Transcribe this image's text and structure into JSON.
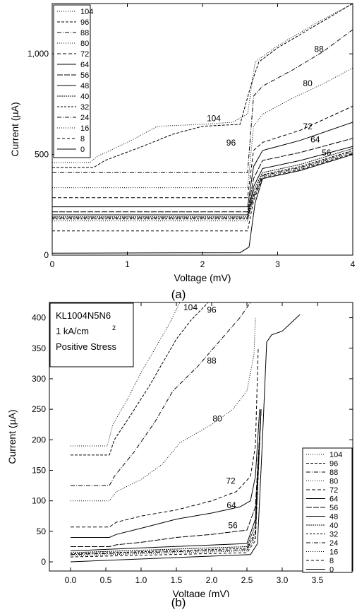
{
  "chart_data": [
    {
      "type": "line",
      "caption": "(a)",
      "xlabel": "Voltage (mV)",
      "ylabel": "Current (µA)",
      "xlim": [
        0,
        4
      ],
      "ylim": [
        0,
        1250
      ],
      "xticks": [
        0,
        1,
        2,
        3,
        4
      ],
      "yticks": [
        0,
        500,
        1000
      ],
      "ytick_labels": [
        "0",
        "500",
        "1,000"
      ],
      "legend_position": "top-left",
      "series": [
        {
          "name": "104",
          "dash": "1,2",
          "points": [
            [
              0,
              460
            ],
            [
              0.5,
              460
            ],
            [
              0.6,
              490
            ],
            [
              1.0,
              560
            ],
            [
              1.4,
              640
            ],
            [
              2.0,
              650
            ],
            [
              2.4,
              660
            ],
            [
              2.6,
              700
            ],
            [
              2.7,
              960
            ],
            [
              3.0,
              1040
            ],
            [
              3.5,
              1150
            ],
            [
              4.0,
              1250
            ]
          ]
        },
        {
          "name": "96",
          "dash": "4,2",
          "points": [
            [
              0,
              435
            ],
            [
              0.55,
              435
            ],
            [
              0.7,
              470
            ],
            [
              1.2,
              540
            ],
            [
              1.6,
              600
            ],
            [
              2.0,
              640
            ],
            [
              2.5,
              650
            ],
            [
              2.65,
              850
            ],
            [
              2.75,
              960
            ],
            [
              3.0,
              1030
            ],
            [
              3.5,
              1140
            ],
            [
              4.0,
              1250
            ]
          ]
        },
        {
          "name": "88",
          "dash": "6,2,1,2",
          "points": [
            [
              0,
              410
            ],
            [
              2.6,
              410
            ],
            [
              2.68,
              790
            ],
            [
              2.8,
              840
            ],
            [
              3.2,
              920
            ],
            [
              3.6,
              1010
            ],
            [
              4.0,
              1120
            ]
          ]
        },
        {
          "name": "80",
          "dash": "1,2",
          "points": [
            [
              0,
              335
            ],
            [
              2.6,
              335
            ],
            [
              2.68,
              640
            ],
            [
              2.8,
              700
            ],
            [
              3.2,
              780
            ],
            [
              3.6,
              850
            ],
            [
              4.0,
              930
            ]
          ]
        },
        {
          "name": "72",
          "dash": "5,3",
          "points": [
            [
              0,
              285
            ],
            [
              2.6,
              285
            ],
            [
              2.68,
              520
            ],
            [
              2.8,
              560
            ],
            [
              3.3,
              620
            ],
            [
              4.0,
              740
            ]
          ]
        },
        {
          "name": "64",
          "dash": "",
          "points": [
            [
              0,
              240
            ],
            [
              2.6,
              240
            ],
            [
              2.68,
              440
            ],
            [
              2.8,
              520
            ],
            [
              3.3,
              570
            ],
            [
              4.0,
              660
            ]
          ]
        },
        {
          "name": "56",
          "dash": "8,2",
          "points": [
            [
              0,
              215
            ],
            [
              2.6,
              215
            ],
            [
              2.68,
              380
            ],
            [
              2.8,
              470
            ],
            [
              3.3,
              510
            ],
            [
              4.0,
              580
            ]
          ]
        },
        {
          "name": "48",
          "dash": "",
          "points": [
            [
              0,
              200
            ],
            [
              2.6,
              200
            ],
            [
              2.68,
              340
            ],
            [
              2.8,
              430
            ],
            [
              3.3,
              470
            ],
            [
              4.0,
              540
            ]
          ]
        },
        {
          "name": "40",
          "dash": "2,1",
          "points": [
            [
              0,
              190
            ],
            [
              2.6,
              190
            ],
            [
              2.68,
              320
            ],
            [
              2.8,
              410
            ],
            [
              3.3,
              450
            ],
            [
              4.0,
              530
            ]
          ]
        },
        {
          "name": "32",
          "dash": "3,2",
          "points": [
            [
              0,
              180
            ],
            [
              2.6,
              180
            ],
            [
              2.68,
              300
            ],
            [
              2.8,
              400
            ],
            [
              3.3,
              440
            ],
            [
              4.0,
              520
            ]
          ]
        },
        {
          "name": "24",
          "dash": "6,2,1,2",
          "points": [
            [
              0,
              185
            ],
            [
              2.6,
              185
            ],
            [
              2.68,
              290
            ],
            [
              2.8,
              395
            ],
            [
              3.3,
              435
            ],
            [
              4.0,
              515
            ]
          ]
        },
        {
          "name": "16",
          "dash": "1,2",
          "points": [
            [
              0,
              170
            ],
            [
              2.6,
              170
            ],
            [
              2.68,
              280
            ],
            [
              2.8,
              390
            ],
            [
              3.3,
              430
            ],
            [
              4.0,
              510
            ]
          ]
        },
        {
          "name": "8",
          "dash": "4,3",
          "points": [
            [
              0,
              120
            ],
            [
              2.6,
              120
            ],
            [
              2.68,
              270
            ],
            [
              2.8,
              385
            ],
            [
              3.3,
              425
            ],
            [
              4.0,
              505
            ]
          ]
        },
        {
          "name": "0",
          "dash": "",
          "points": [
            [
              0,
              10
            ],
            [
              2.5,
              12
            ],
            [
              2.62,
              40
            ],
            [
              2.7,
              260
            ],
            [
              2.8,
              380
            ],
            [
              3.3,
              420
            ],
            [
              4.0,
              500
            ]
          ]
        }
      ],
      "annotations": [
        {
          "text": "104",
          "x": 2.15,
          "y": 665
        },
        {
          "text": "96",
          "x": 2.38,
          "y": 545
        },
        {
          "text": "88",
          "x": 3.55,
          "y": 1010
        },
        {
          "text": "80",
          "x": 3.4,
          "y": 840
        },
        {
          "text": "72",
          "x": 3.4,
          "y": 625
        },
        {
          "text": "64",
          "x": 3.5,
          "y": 560
        },
        {
          "text": "56",
          "x": 3.65,
          "y": 495
        }
      ]
    },
    {
      "type": "line",
      "caption": "(b)",
      "xlabel": "Voltage (mV)",
      "ylabel": "Current (µA)",
      "xlim": [
        -0.3,
        4.0
      ],
      "ylim": [
        -15,
        425
      ],
      "xticks": [
        0.0,
        0.5,
        1.0,
        1.5,
        2.0,
        2.5,
        3.0,
        3.5
      ],
      "xtick_labels": [
        "0.0",
        "0.5",
        "1.0",
        "1.5",
        "2.0",
        "2.5",
        "3.0",
        "3.5"
      ],
      "yticks": [
        0,
        50,
        100,
        150,
        200,
        250,
        300,
        350,
        400
      ],
      "legend_position": "bottom-right",
      "title_lines": [
        "KL1004N5N6",
        "1 kA/cm",
        "2",
        "Positive Stress"
      ],
      "series": [
        {
          "name": "104",
          "dash": "1,2",
          "points": [
            [
              0,
              190
            ],
            [
              0.52,
              190
            ],
            [
              0.6,
              225
            ],
            [
              0.8,
              265
            ],
            [
              1.0,
              310
            ],
            [
              1.2,
              350
            ],
            [
              1.4,
              390
            ],
            [
              1.55,
              425
            ]
          ]
        },
        {
          "name": "96",
          "dash": "4,2",
          "points": [
            [
              0,
              175
            ],
            [
              0.55,
              175
            ],
            [
              0.62,
              200
            ],
            [
              0.85,
              240
            ],
            [
              1.1,
              285
            ],
            [
              1.3,
              325
            ],
            [
              1.5,
              365
            ],
            [
              1.7,
              395
            ],
            [
              1.95,
              425
            ]
          ]
        },
        {
          "name": "88",
          "dash": "6,2,1,2",
          "points": [
            [
              0,
              125
            ],
            [
              0.55,
              125
            ],
            [
              0.62,
              140
            ],
            [
              0.9,
              180
            ],
            [
              1.2,
              230
            ],
            [
              1.45,
              280
            ],
            [
              1.8,
              320
            ],
            [
              2.1,
              360
            ],
            [
              2.4,
              400
            ],
            [
              2.55,
              425
            ]
          ]
        },
        {
          "name": "80",
          "dash": "1,2",
          "points": [
            [
              0,
              100
            ],
            [
              0.55,
              100
            ],
            [
              0.65,
              115
            ],
            [
              1.0,
              135
            ],
            [
              1.3,
              160
            ],
            [
              1.55,
              195
            ],
            [
              2.0,
              225
            ],
            [
              2.3,
              250
            ],
            [
              2.5,
              280
            ],
            [
              2.6,
              340
            ],
            [
              2.62,
              400
            ]
          ]
        },
        {
          "name": "72",
          "dash": "5,3",
          "points": [
            [
              0,
              57
            ],
            [
              0.55,
              57
            ],
            [
              0.65,
              65
            ],
            [
              1.0,
              75
            ],
            [
              1.5,
              85
            ],
            [
              2.0,
              100
            ],
            [
              2.35,
              115
            ],
            [
              2.55,
              140
            ],
            [
              2.62,
              190
            ],
            [
              2.66,
              350
            ]
          ]
        },
        {
          "name": "64",
          "dash": "",
          "points": [
            [
              0,
              40
            ],
            [
              0.55,
              40
            ],
            [
              0.65,
              45
            ],
            [
              1.0,
              55
            ],
            [
              1.5,
              70
            ],
            [
              2.0,
              80
            ],
            [
              2.4,
              90
            ],
            [
              2.55,
              100
            ],
            [
              2.62,
              140
            ],
            [
              2.68,
              250
            ]
          ]
        },
        {
          "name": "56",
          "dash": "8,2",
          "points": [
            [
              0,
              25
            ],
            [
              0.55,
              25
            ],
            [
              0.65,
              28
            ],
            [
              1.0,
              32
            ],
            [
              1.5,
              40
            ],
            [
              2.0,
              45
            ],
            [
              2.5,
              52
            ],
            [
              2.62,
              90
            ],
            [
              2.7,
              250
            ]
          ]
        },
        {
          "name": "48",
          "dash": "",
          "points": [
            [
              0,
              18
            ],
            [
              2.5,
              30
            ],
            [
              2.62,
              70
            ],
            [
              2.7,
              250
            ]
          ]
        },
        {
          "name": "40",
          "dash": "2,1",
          "points": [
            [
              0,
              15
            ],
            [
              2.5,
              25
            ],
            [
              2.62,
              60
            ],
            [
              2.7,
              250
            ]
          ]
        },
        {
          "name": "32",
          "dash": "3,2",
          "points": [
            [
              0,
              13
            ],
            [
              2.5,
              22
            ],
            [
              2.62,
              50
            ],
            [
              2.7,
              250
            ]
          ]
        },
        {
          "name": "24",
          "dash": "6,2,1,2",
          "points": [
            [
              0,
              12
            ],
            [
              2.5,
              20
            ],
            [
              2.62,
              45
            ],
            [
              2.7,
              250
            ]
          ]
        },
        {
          "name": "16",
          "dash": "1,2",
          "points": [
            [
              0,
              10
            ],
            [
              2.5,
              18
            ],
            [
              2.62,
              40
            ],
            [
              2.7,
              250
            ]
          ]
        },
        {
          "name": "8",
          "dash": "4,3",
          "points": [
            [
              0,
              8
            ],
            [
              2.5,
              15
            ],
            [
              2.62,
              35
            ],
            [
              2.7,
              250
            ]
          ]
        },
        {
          "name": "0",
          "dash": "",
          "points": [
            [
              0,
              0
            ],
            [
              2.55,
              12
            ],
            [
              2.65,
              30
            ],
            [
              2.72,
              200
            ],
            [
              2.78,
              360
            ],
            [
              2.85,
              372
            ],
            [
              3.0,
              378
            ],
            [
              3.25,
              405
            ]
          ]
        }
      ],
      "annotations": [
        {
          "text": "104",
          "x": 1.7,
          "y": 412
        },
        {
          "text": "96",
          "x": 2.0,
          "y": 408
        },
        {
          "text": "88",
          "x": 2.0,
          "y": 325
        },
        {
          "text": "80",
          "x": 2.08,
          "y": 230
        },
        {
          "text": "72",
          "x": 2.27,
          "y": 128
        },
        {
          "text": "64",
          "x": 2.28,
          "y": 88
        },
        {
          "text": "56",
          "x": 2.3,
          "y": 55
        }
      ]
    }
  ]
}
